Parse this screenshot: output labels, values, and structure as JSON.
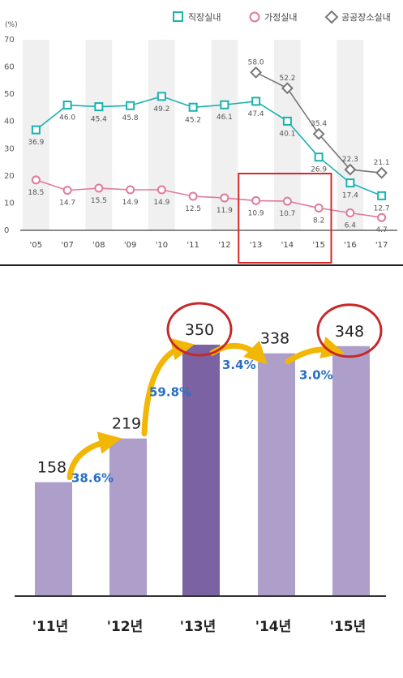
{
  "chart_data": [
    {
      "type": "line",
      "y_unit_label": "(%)",
      "categories": [
        "'05",
        "'07",
        "'08",
        "'09",
        "'10",
        "'11",
        "'12",
        "'13",
        "'14",
        "'15",
        "'16",
        "'17"
      ],
      "ylim": [
        0,
        70
      ],
      "yticks": [
        0,
        10,
        20,
        30,
        40,
        50,
        60,
        70
      ],
      "grid": "alternating vertical bands",
      "legend": "top-right",
      "series": [
        {
          "name": "직장실내",
          "color": "#19b3b0",
          "marker": "square",
          "values": [
            36.9,
            46.0,
            45.4,
            45.8,
            49.2,
            45.2,
            46.1,
            47.4,
            40.1,
            26.9,
            17.4,
            12.7
          ],
          "labels": [
            "36.9",
            "46.0",
            "45.4",
            "45.8",
            "49.2",
            "45.2",
            "46.1",
            "47.4",
            "40.1",
            "26.9",
            "17.4",
            "12.7"
          ]
        },
        {
          "name": "가정실내",
          "color": "#e07a9a",
          "marker": "circle",
          "values": [
            18.5,
            14.7,
            15.5,
            14.9,
            14.9,
            12.5,
            11.9,
            10.9,
            10.7,
            8.2,
            6.4,
            4.7
          ],
          "labels": [
            "18.5",
            "14.7",
            "15.5",
            "14.9",
            "14.9",
            "12.5",
            "11.9",
            "10.9",
            "10.7",
            "8.2",
            "6.4",
            "4.7"
          ]
        },
        {
          "name": "공공장소실내",
          "color": "#777777",
          "marker": "diamond",
          "values": [
            null,
            null,
            null,
            null,
            null,
            null,
            null,
            58.0,
            52.2,
            35.4,
            22.3,
            21.1
          ],
          "labels": [
            null,
            null,
            null,
            null,
            null,
            null,
            null,
            "58.0",
            "52.2",
            "35.4",
            "22.3",
            "21.1"
          ]
        }
      ],
      "highlight_categories": [
        "'13",
        "'15"
      ],
      "highlight_color": "#d62828"
    },
    {
      "type": "bar",
      "categories": [
        "'11년",
        "'12년",
        "'13년",
        "'14년",
        "'15년"
      ],
      "values": [
        158,
        219,
        350,
        338,
        348
      ],
      "value_labels": [
        "158",
        "219",
        "350",
        "338",
        "348"
      ],
      "bar_colors": [
        "#ad9fca",
        "#ad9fca",
        "#7a62a3",
        "#ad9fca",
        "#ad9fca"
      ],
      "ylim": [
        0,
        380
      ],
      "growth_labels": [
        {
          "from": "'11년",
          "to": "'12년",
          "text": "38.6%"
        },
        {
          "from": "'12년",
          "to": "'13년",
          "text": "59.8%"
        },
        {
          "from": "'13년",
          "to": "'14년",
          "text": "3.4%"
        },
        {
          "from": "'14년",
          "to": "'15년",
          "text": "3.0%"
        }
      ],
      "growth_label_color": "#2a6fc4",
      "arrow_color": "#f2b705",
      "circled_categories": [
        "'13년",
        "'15년"
      ],
      "circle_color": "#c62828"
    }
  ]
}
